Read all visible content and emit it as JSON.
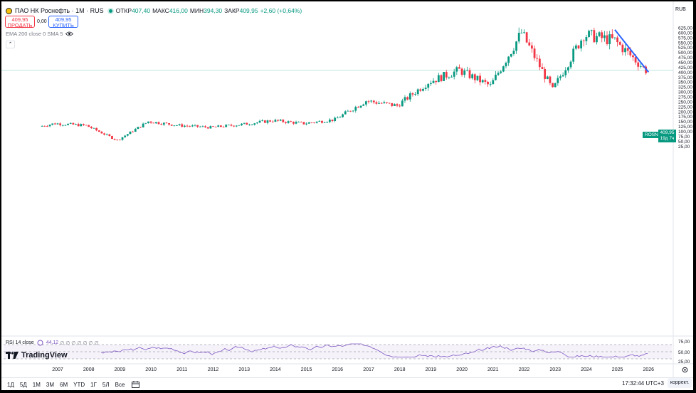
{
  "header": {
    "symbol_title": "ПАО НК Роснефть · 1М · RUS",
    "ohlc": [
      {
        "key": "ОТКР",
        "value": "407,40"
      },
      {
        "key": "МАКС",
        "value": "416,00"
      },
      {
        "key": "МИН",
        "value": "394,30"
      },
      {
        "key": "ЗАКР",
        "value": "409,95"
      }
    ],
    "change": "+2,60 (+0,64%)",
    "currency": "RUB"
  },
  "trade": {
    "sell_price": "409,95",
    "sell_label": "ПРОДАТЬ",
    "spread": "0,00",
    "buy_price": "409,95",
    "buy_label": "КУПИТЬ"
  },
  "indicators": {
    "ema_label": "EMA 200 close 0 SMA 5",
    "collapse_glyph": "⌃",
    "rsi_label": "RSI 14 close",
    "rsi_value": "44,12",
    "rsi_placeholders": "∅ ∅ ∅ ∅ ∅ ∅ ∅"
  },
  "price_axis": {
    "ticks": [
      "625,00",
      "600,00",
      "575,00",
      "550,00",
      "525,00",
      "500,00",
      "475,00",
      "450,00",
      "425,00",
      "400,00",
      "375,00",
      "350,00",
      "325,00",
      "300,00",
      "275,00",
      "250,00",
      "225,00",
      "200,00",
      "175,00",
      "150,00",
      "125,00",
      "100,00",
      "75,00",
      "50,00",
      "25,00"
    ],
    "rsi_ticks": [
      "75,00",
      "50,00",
      "25,00"
    ]
  },
  "last_price": {
    "symbol": "ROSN",
    "price": "409,95",
    "countdown": "19д 7ч"
  },
  "time_axis": {
    "years": [
      "2007",
      "2008",
      "2009",
      "2010",
      "2011",
      "2012",
      "2013",
      "2014",
      "2015",
      "2016",
      "2017",
      "2018",
      "2019",
      "2020",
      "2021",
      "2022",
      "2023",
      "2024",
      "2025",
      "2026"
    ]
  },
  "bottom_bar": {
    "ranges": [
      "1Д",
      "5Д",
      "1М",
      "3М",
      "6М",
      "YTD",
      "1Г",
      "5Л",
      "Все"
    ],
    "clock": "17:32:44 UTC+3",
    "correction_label": "коррект."
  },
  "branding": {
    "logo_text": "TradingView"
  },
  "colors": {
    "up": "#089981",
    "down": "#f23645",
    "trendline": "#2962ff",
    "rsi": "#7e57c2"
  },
  "chart_data": {
    "type": "candlestick",
    "interval": "1M",
    "y_range": [
      0,
      640
    ],
    "x_range": [
      "2006-07",
      "2026-04"
    ],
    "candles_yearly_approx": [
      {
        "x": "2006",
        "open": 125,
        "close": 140
      },
      {
        "x": "2007",
        "open": 140,
        "close": 130
      },
      {
        "x": "2008",
        "open": 130,
        "close": 55
      },
      {
        "x": "2009",
        "open": 55,
        "close": 150
      },
      {
        "x": "2010",
        "open": 150,
        "close": 130
      },
      {
        "x": "2011",
        "open": 130,
        "close": 120
      },
      {
        "x": "2012",
        "open": 120,
        "close": 135
      },
      {
        "x": "2013",
        "open": 135,
        "close": 155
      },
      {
        "x": "2014",
        "open": 155,
        "close": 140
      },
      {
        "x": "2015",
        "open": 140,
        "close": 160
      },
      {
        "x": "2016",
        "open": 160,
        "close": 255
      },
      {
        "x": "2017",
        "open": 255,
        "close": 230
      },
      {
        "x": "2018",
        "open": 230,
        "close": 350
      },
      {
        "x": "2019",
        "open": 350,
        "close": 410
      },
      {
        "x": "2020",
        "open": 410,
        "close": 330
      },
      {
        "x": "2021",
        "open": 330,
        "close": 600
      },
      {
        "x": "2022",
        "open": 600,
        "close": 310
      },
      {
        "x": "2023",
        "open": 310,
        "close": 590
      },
      {
        "x": "2024",
        "open": 590,
        "close": 560
      },
      {
        "x": "2025",
        "open": 560,
        "close": 410
      }
    ],
    "trendline": {
      "from": {
        "x": "2024-12",
        "y": 615
      },
      "to": {
        "x": "2026-01",
        "y": 400
      }
    },
    "last": 409.95
  }
}
